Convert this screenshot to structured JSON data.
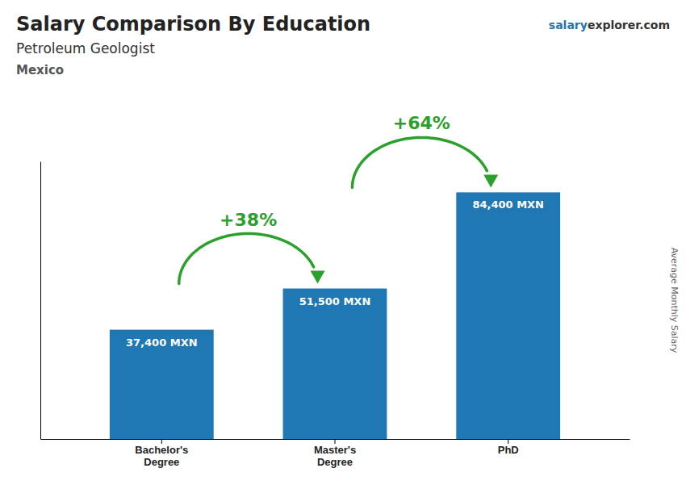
{
  "chart_data": {
    "type": "bar",
    "title": "Salary Comparison By Education",
    "subtitle": "Petroleum Geologist",
    "country": "Mexico",
    "website": [
      "salary",
      "explorer.com"
    ],
    "y_label": "Average Monthly Salary",
    "categories": [
      "Bachelor's\nDegree",
      "Master's\nDegree",
      "PhD"
    ],
    "values": [
      37400,
      51500,
      84400
    ],
    "value_labels": [
      "37,400 MXN",
      "51,500 MXN",
      "84,400 MXN"
    ],
    "data_labels": true,
    "annotations": [
      "+38%",
      "+64%"
    ],
    "ylim": [
      0,
      95000
    ],
    "tick_labels": "x"
  }
}
